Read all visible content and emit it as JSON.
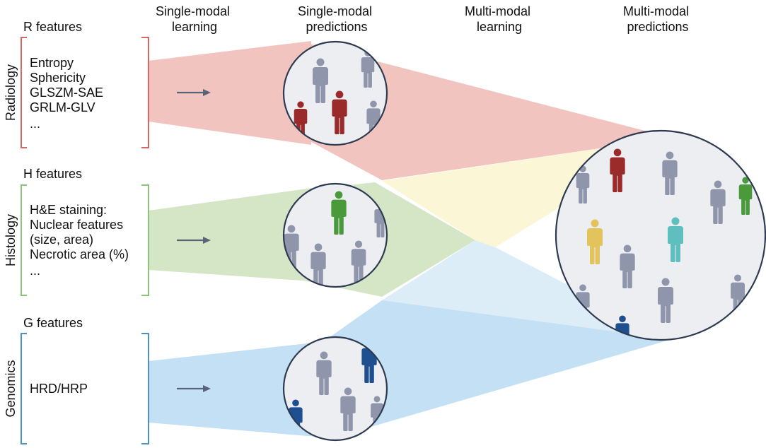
{
  "column_headers": [
    {
      "line1": "Single-modal",
      "line2": "learning"
    },
    {
      "line1": "Single-modal",
      "line2": "predictions"
    },
    {
      "line1": "Multi-modal",
      "line2": "learning"
    },
    {
      "line1": "Multi-modal",
      "line2": "predictions"
    }
  ],
  "modalities": [
    {
      "side_label": "Radiology",
      "features_title": "R features",
      "items": [
        "Entropy",
        "Sphericity",
        "GLSZM-SAE",
        "GRLM-GLV",
        "..."
      ],
      "color": "#d9665f"
    },
    {
      "side_label": "Histology",
      "features_title": "H features",
      "items": [
        "H&E staining:",
        "Nuclear features",
        "(size, area)",
        "Necrotic area (%)",
        "..."
      ],
      "color": "#8cc27a"
    },
    {
      "side_label": "Genomics",
      "features_title": "G features",
      "items": [
        "HRD/HRP"
      ],
      "color": "#4e8fc4"
    }
  ],
  "colors": {
    "radiology_fill": "#f2c4c0",
    "histology_fill": "#d5e6c6",
    "genomics_fill": "#c3e0f4",
    "genomics_fill_light": "#dcedf8",
    "overlap_yellow": "#fbf6d6",
    "circle_fill": "#eceef2",
    "circle_stroke": "#2e3a50",
    "person_grey": "#8f96ab",
    "person_red": "#9b2a2a",
    "person_green": "#4a9a3c",
    "person_blue": "#1e4f8f",
    "person_yellow": "#e3c35c",
    "person_teal": "#5fbfbf",
    "arrow": "#5a6478"
  },
  "icons": [
    "arrow-right-icon",
    "person-icon"
  ]
}
